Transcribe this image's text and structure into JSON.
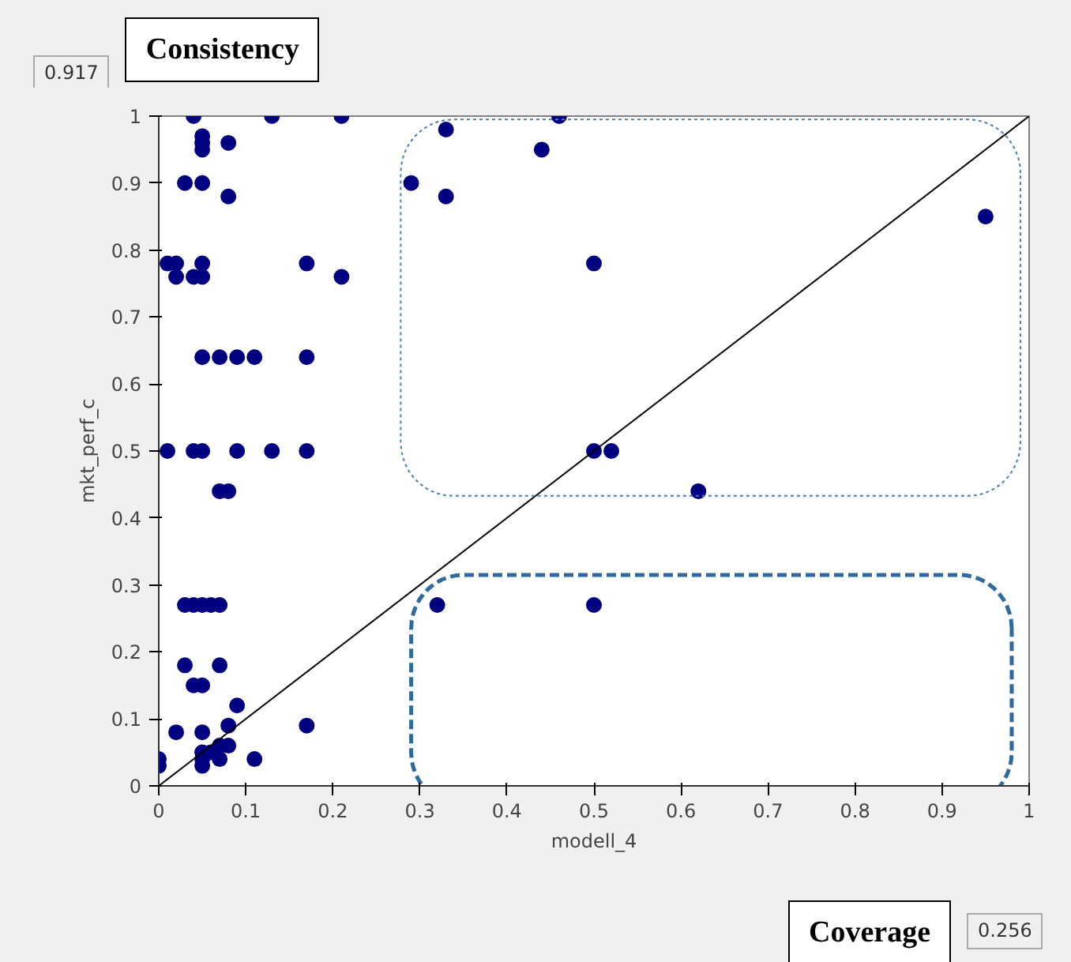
{
  "chart_data": {
    "type": "scatter",
    "xlabel": "modell_4",
    "ylabel": "mkt_perf_c",
    "annotations": [
      "Consistency",
      "0.917",
      "Coverage",
      "0.256"
    ],
    "xlim": [
      0,
      1
    ],
    "ylim": [
      0,
      1
    ],
    "xticks": [
      0,
      0.1,
      0.2,
      0.3,
      0.4,
      0.5,
      0.6,
      0.7,
      0.8,
      0.9,
      1
    ],
    "yticks": [
      0,
      0.1,
      0.2,
      0.3,
      0.4,
      0.5,
      0.6,
      0.7,
      0.8,
      0.9,
      1
    ],
    "grid": false,
    "marker": "circle",
    "series": [
      {
        "color": "#000080",
        "x": [
          0.04,
          0.13,
          0.21,
          0.05,
          0.05,
          0.05,
          0.08,
          0.03,
          0.05,
          0.08,
          0.01,
          0.02,
          0.05,
          0.17,
          0.02,
          0.04,
          0.05,
          0.21,
          0.05,
          0.07,
          0.09,
          0.11,
          0.17,
          0.01,
          0.04,
          0.05,
          0.09,
          0.13,
          0.17,
          0.07,
          0.08,
          0.03,
          0.04,
          0.05,
          0.06,
          0.07,
          0.03,
          0.07,
          0.04,
          0.05,
          0.09,
          0.08,
          0.17,
          0.02,
          0.05,
          0.07,
          0.08,
          0.06,
          0.05,
          0.0,
          0.05,
          0.07,
          0.11,
          0.0,
          0.05,
          0.29,
          0.33,
          0.33,
          0.44,
          0.46,
          0.5,
          0.95,
          0.5,
          0.52,
          0.62,
          0.32,
          0.5
        ],
        "values": [
          1,
          1,
          1,
          0.97,
          0.96,
          0.95,
          0.96,
          0.9,
          0.9,
          0.88,
          0.78,
          0.78,
          0.78,
          0.78,
          0.76,
          0.76,
          0.76,
          0.76,
          0.64,
          0.64,
          0.64,
          0.64,
          0.64,
          0.5,
          0.5,
          0.5,
          0.5,
          0.5,
          0.5,
          0.44,
          0.44,
          0.27,
          0.27,
          0.27,
          0.27,
          0.27,
          0.18,
          0.18,
          0.15,
          0.15,
          0.12,
          0.09,
          0.09,
          0.08,
          0.08,
          0.06,
          0.06,
          0.05,
          0.05,
          0.04,
          0.04,
          0.04,
          0.04,
          0.03,
          0.03,
          0.9,
          0.98,
          0.88,
          0.95,
          1,
          0.78,
          0.85,
          0.5,
          0.5,
          0.44,
          0.27,
          0.27
        ]
      },
      {
        "type": "line",
        "color": "#000000",
        "x": [
          0,
          1
        ],
        "values": [
          0,
          1
        ],
        "marker": "none"
      }
    ]
  }
}
